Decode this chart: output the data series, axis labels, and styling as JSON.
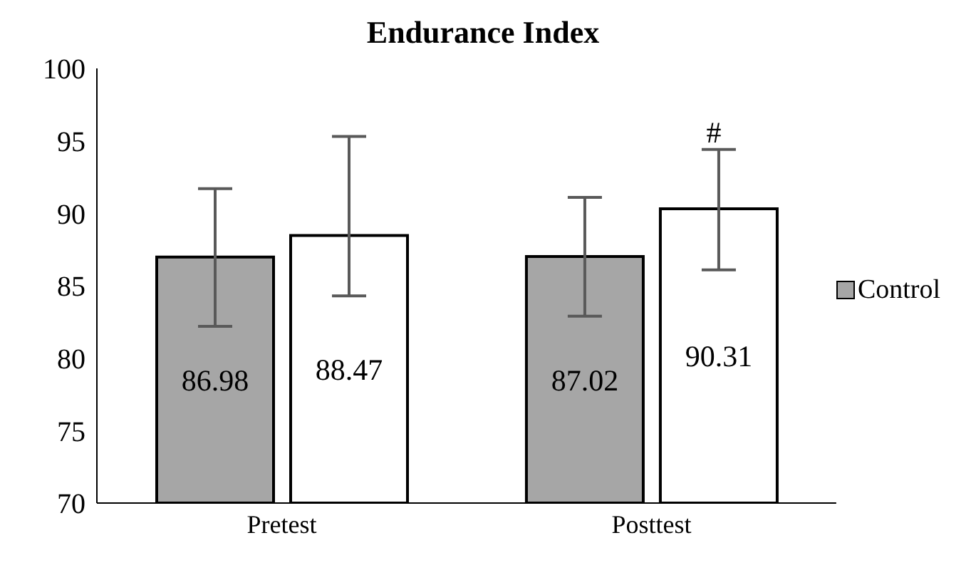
{
  "chart_data": {
    "type": "bar",
    "title": "Endurance Index",
    "categories": [
      "Pretest",
      "Posttest"
    ],
    "series": [
      {
        "name": "Control",
        "color": "#a6a6a6",
        "values": [
          86.98,
          87.02
        ],
        "errors": [
          [
            82.2,
            91.7
          ],
          [
            82.9,
            91.1
          ]
        ]
      },
      {
        "color": "#ffffff",
        "values": [
          88.47,
          90.31
        ],
        "errors": [
          [
            84.3,
            95.3
          ],
          [
            86.1,
            94.4
          ]
        ]
      }
    ],
    "ylim": [
      70,
      100
    ],
    "yticks": [
      70,
      75,
      80,
      85,
      90,
      95,
      100
    ],
    "grid": false,
    "legend": "right",
    "data_labels": true,
    "annotations": [
      "#"
    ]
  }
}
